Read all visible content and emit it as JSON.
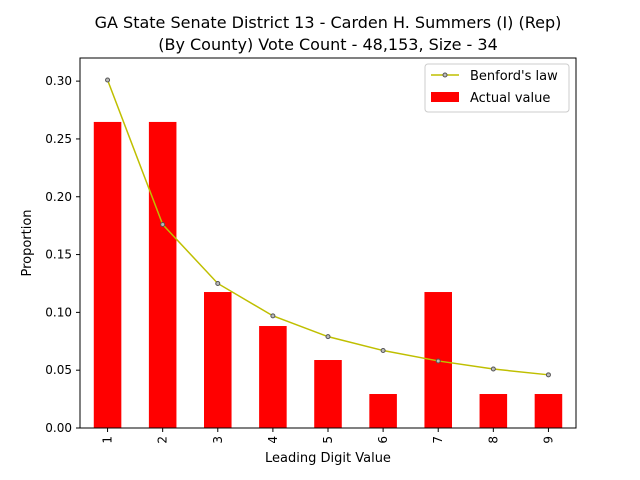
{
  "chart_data": {
    "type": "bar",
    "title_line1": "GA State Senate District 13 - Carden H. Summers (I) (Rep)",
    "title_line2": "(By County) Vote Count - 48,153, Size - 34",
    "xlabel": "Leading Digit Value",
    "ylabel": "Proportion",
    "categories": [
      "1",
      "2",
      "3",
      "4",
      "5",
      "6",
      "7",
      "8",
      "9"
    ],
    "ylim": [
      0,
      0.32
    ],
    "yticks": [
      "0.00",
      "0.05",
      "0.10",
      "0.15",
      "0.20",
      "0.25",
      "0.30"
    ],
    "legend_position": "top-right",
    "grid": false,
    "series": [
      {
        "name": "Benford's law",
        "type": "line",
        "color": "#bfbf00",
        "values": [
          0.301,
          0.176,
          0.125,
          0.097,
          0.079,
          0.067,
          0.058,
          0.051,
          0.046
        ]
      },
      {
        "name": "Actual value",
        "type": "bar",
        "color": "#ff0000",
        "values": [
          0.2647,
          0.2647,
          0.1176,
          0.0882,
          0.0588,
          0.0294,
          0.1176,
          0.0294,
          0.0294
        ]
      }
    ]
  }
}
